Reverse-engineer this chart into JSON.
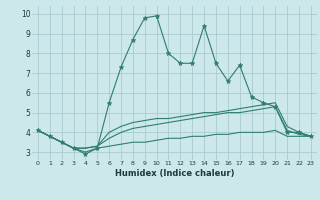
{
  "xlabel": "Humidex (Indice chaleur)",
  "x": [
    0,
    1,
    2,
    3,
    4,
    5,
    6,
    7,
    8,
    9,
    10,
    11,
    12,
    13,
    14,
    15,
    16,
    17,
    18,
    19,
    20,
    21,
    22,
    23
  ],
  "line_max": [
    4.1,
    3.8,
    3.5,
    3.2,
    2.9,
    3.2,
    5.5,
    7.3,
    8.7,
    9.8,
    9.9,
    8.0,
    7.5,
    7.5,
    9.4,
    7.5,
    6.6,
    7.4,
    5.8,
    5.5,
    5.3,
    4.0,
    4.0,
    3.8
  ],
  "line_upper": [
    4.1,
    3.8,
    3.5,
    3.2,
    3.2,
    3.3,
    4.0,
    4.3,
    4.5,
    4.6,
    4.7,
    4.7,
    4.8,
    4.9,
    5.0,
    5.0,
    5.1,
    5.2,
    5.3,
    5.4,
    5.5,
    4.3,
    4.0,
    3.8
  ],
  "line_lower": [
    4.1,
    3.8,
    3.5,
    3.2,
    3.2,
    3.3,
    3.7,
    4.0,
    4.2,
    4.3,
    4.4,
    4.5,
    4.6,
    4.7,
    4.8,
    4.9,
    5.0,
    5.0,
    5.1,
    5.2,
    5.3,
    4.1,
    3.9,
    3.8
  ],
  "line_min": [
    4.1,
    3.8,
    3.5,
    3.2,
    3.0,
    3.2,
    3.3,
    3.4,
    3.5,
    3.5,
    3.6,
    3.7,
    3.7,
    3.8,
    3.8,
    3.9,
    3.9,
    4.0,
    4.0,
    4.0,
    4.1,
    3.8,
    3.8,
    3.8
  ],
  "color": "#2e7d6e",
  "bg_color": "#cde8ea",
  "grid_color": "#aacbce",
  "ylim": [
    2.6,
    10.4
  ],
  "xlim": [
    -0.5,
    23.5
  ],
  "yticks": [
    3,
    4,
    5,
    6,
    7,
    8,
    9,
    10
  ],
  "xticks": [
    0,
    1,
    2,
    3,
    4,
    5,
    6,
    7,
    8,
    9,
    10,
    11,
    12,
    13,
    14,
    15,
    16,
    17,
    18,
    19,
    20,
    21,
    22,
    23
  ]
}
